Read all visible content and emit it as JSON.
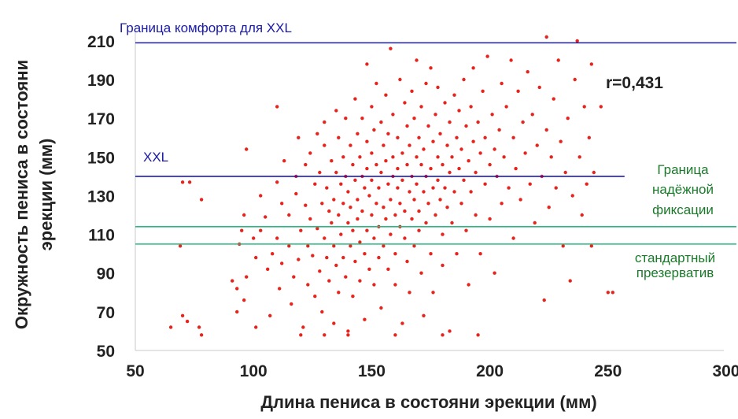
{
  "chart_data": {
    "type": "scatter",
    "xlabel": "Длина пениса в состояни эрекции (мм)",
    "ylabel": "Окружность пениса в состояни эрекции (мм)",
    "xlim": [
      50,
      305
    ],
    "ylim": [
      50,
      212
    ],
    "xticks": [
      50,
      100,
      150,
      200,
      250,
      300
    ],
    "yticks": [
      50,
      70,
      90,
      110,
      130,
      150,
      170,
      190,
      210
    ],
    "grid": false,
    "legend": "none",
    "annotations": {
      "comfort_xxl": "Граница комфорта для XXL",
      "xxl": "XXL",
      "reliable_1": "Граница",
      "reliable_2": "надёжной",
      "reliable_3": "фиксации",
      "standard_1": "стандартный",
      "standard_2": "презерватив",
      "r": "r=0,431"
    },
    "reference_lines": [
      {
        "id": "comfort-xxl",
        "y": 209,
        "x_from": 50,
        "x_to": 305,
        "color": "#1a1ab4"
      },
      {
        "id": "xxl",
        "y": 140,
        "x_from": 50,
        "x_to": 257,
        "color": "#1a1ab4"
      },
      {
        "id": "reliable-fixation",
        "y": 114,
        "x_from": 50,
        "x_to": 305,
        "color": "#2ab880"
      },
      {
        "id": "standard-condom",
        "y": 105,
        "x_from": 50,
        "x_to": 305,
        "color": "#2ab880"
      }
    ],
    "point_color": "#e8231c",
    "series": [
      {
        "points": [
          [
            65,
            62
          ],
          [
            70,
            68
          ],
          [
            72,
            65
          ],
          [
            77,
            62
          ],
          [
            78,
            58
          ],
          [
            70,
            137
          ],
          [
            73,
            137
          ],
          [
            78,
            128
          ],
          [
            69,
            104
          ],
          [
            91,
            86
          ],
          [
            93,
            82
          ],
          [
            93,
            70
          ],
          [
            96,
            76
          ],
          [
            97,
            88
          ],
          [
            95,
            112
          ],
          [
            96,
            120
          ],
          [
            94,
            105
          ],
          [
            97,
            154
          ],
          [
            100,
            108
          ],
          [
            101,
            98
          ],
          [
            101,
            62
          ],
          [
            103,
            112
          ],
          [
            103,
            130
          ],
          [
            105,
            119
          ],
          [
            106,
            92
          ],
          [
            107,
            68
          ],
          [
            108,
            100
          ],
          [
            110,
            176
          ],
          [
            110,
            137
          ],
          [
            110,
            108
          ],
          [
            111,
            82
          ],
          [
            112,
            126
          ],
          [
            112,
            95
          ],
          [
            113,
            148
          ],
          [
            115,
            120
          ],
          [
            115,
            104
          ],
          [
            116,
            74
          ],
          [
            117,
            88
          ],
          [
            118,
            140
          ],
          [
            118,
            131
          ],
          [
            119,
            160
          ],
          [
            119,
            97
          ],
          [
            120,
            112
          ],
          [
            121,
            62
          ],
          [
            122,
            146
          ],
          [
            122,
            125
          ],
          [
            123,
            104
          ],
          [
            123,
            84
          ],
          [
            124,
            152
          ],
          [
            124,
            118
          ],
          [
            125,
            99
          ],
          [
            126,
            136
          ],
          [
            126,
            78
          ],
          [
            127,
            162
          ],
          [
            127,
            113
          ],
          [
            128,
            142
          ],
          [
            128,
            91
          ],
          [
            129,
            126
          ],
          [
            129,
            70
          ],
          [
            130,
            168
          ],
          [
            130,
            156
          ],
          [
            130,
            108
          ],
          [
            131,
            134
          ],
          [
            131,
            98
          ],
          [
            132,
            122
          ],
          [
            132,
            86
          ],
          [
            133,
            148
          ],
          [
            133,
            116
          ],
          [
            134,
            128
          ],
          [
            134,
            104
          ],
          [
            134,
            64
          ],
          [
            135,
            174
          ],
          [
            135,
            142
          ],
          [
            135,
            94
          ],
          [
            136,
            160
          ],
          [
            136,
            120
          ],
          [
            136,
            80
          ],
          [
            137,
            136
          ],
          [
            137,
            110
          ],
          [
            138,
            150
          ],
          [
            138,
            126
          ],
          [
            138,
            98
          ],
          [
            139,
            170
          ],
          [
            139,
            140
          ],
          [
            139,
            88
          ],
          [
            140,
            116
          ],
          [
            140,
            132
          ],
          [
            140,
            60
          ],
          [
            141,
            156
          ],
          [
            141,
            124
          ],
          [
            141,
            104
          ],
          [
            142,
            146
          ],
          [
            142,
            112
          ],
          [
            142,
            78
          ],
          [
            143,
            180
          ],
          [
            143,
            138
          ],
          [
            143,
            96
          ],
          [
            144,
            128
          ],
          [
            144,
            162
          ],
          [
            144,
            118
          ],
          [
            145,
            150
          ],
          [
            145,
            106
          ],
          [
            145,
            86
          ],
          [
            146,
            140
          ],
          [
            146,
            170
          ],
          [
            146,
            122
          ],
          [
            147,
            134
          ],
          [
            147,
            100
          ],
          [
            147,
            66
          ],
          [
            148,
            198
          ],
          [
            148,
            158
          ],
          [
            148,
            144
          ],
          [
            148,
            112
          ],
          [
            149,
            130
          ],
          [
            149,
            92
          ],
          [
            150,
            176
          ],
          [
            150,
            152
          ],
          [
            150,
            120
          ],
          [
            150,
            138
          ],
          [
            151,
            108
          ],
          [
            151,
            164
          ],
          [
            151,
            84
          ],
          [
            152,
            146
          ],
          [
            152,
            126
          ],
          [
            152,
            188
          ],
          [
            153,
            134
          ],
          [
            153,
            114
          ],
          [
            153,
            98
          ],
          [
            154,
            168
          ],
          [
            154,
            142
          ],
          [
            154,
            72
          ],
          [
            155,
            156
          ],
          [
            155,
            124
          ],
          [
            155,
            104
          ],
          [
            156,
            182
          ],
          [
            156,
            148
          ],
          [
            156,
            118
          ],
          [
            157,
            136
          ],
          [
            157,
            92
          ],
          [
            157,
            162
          ],
          [
            158,
            128
          ],
          [
            158,
            110
          ],
          [
            158,
            206
          ],
          [
            159,
            172
          ],
          [
            159,
            140
          ],
          [
            159,
            150
          ],
          [
            160,
            120
          ],
          [
            160,
            100
          ],
          [
            160,
            84
          ],
          [
            161,
            160
          ],
          [
            161,
            134
          ],
          [
            161,
            144
          ],
          [
            162,
            190
          ],
          [
            162,
            126
          ],
          [
            162,
            114
          ],
          [
            163,
            152
          ],
          [
            163,
            138
          ],
          [
            163,
            64
          ],
          [
            164,
            178
          ],
          [
            164,
            122
          ],
          [
            164,
            108
          ],
          [
            165,
            166
          ],
          [
            165,
            146
          ],
          [
            165,
            96
          ],
          [
            166,
            132
          ],
          [
            166,
            156
          ],
          [
            166,
            80
          ],
          [
            167,
            184
          ],
          [
            167,
            140
          ],
          [
            167,
            118
          ],
          [
            168,
            170
          ],
          [
            168,
            128
          ],
          [
            168,
            104
          ],
          [
            169,
            150
          ],
          [
            169,
            136
          ],
          [
            169,
            200
          ],
          [
            170,
            160
          ],
          [
            170,
            122
          ],
          [
            170,
            112
          ],
          [
            171,
            146
          ],
          [
            171,
            176
          ],
          [
            171,
            90
          ],
          [
            172,
            132
          ],
          [
            172,
            154
          ],
          [
            172,
            68
          ],
          [
            173,
            188
          ],
          [
            173,
            140
          ],
          [
            173,
            116
          ],
          [
            174,
            166
          ],
          [
            174,
            126
          ],
          [
            175,
            144
          ],
          [
            175,
            196
          ],
          [
            175,
            100
          ],
          [
            176,
            158
          ],
          [
            176,
            134
          ],
          [
            176,
            80
          ],
          [
            177,
            172
          ],
          [
            177,
            120
          ],
          [
            178,
            150
          ],
          [
            178,
            138
          ],
          [
            178,
            186
          ],
          [
            179,
            128
          ],
          [
            179,
            162
          ],
          [
            180,
            146
          ],
          [
            180,
            110
          ],
          [
            180,
            94
          ],
          [
            181,
            178
          ],
          [
            181,
            134
          ],
          [
            182,
            156
          ],
          [
            182,
            124
          ],
          [
            183,
            168
          ],
          [
            183,
            142
          ],
          [
            183,
            60
          ],
          [
            184,
            150
          ],
          [
            184,
            116
          ],
          [
            185,
            182
          ],
          [
            185,
            132
          ],
          [
            186,
            160
          ],
          [
            186,
            100
          ],
          [
            187,
            144
          ],
          [
            187,
            174
          ],
          [
            188,
            126
          ],
          [
            188,
            154
          ],
          [
            189,
            190
          ],
          [
            189,
            138
          ],
          [
            190,
            166
          ],
          [
            190,
            112
          ],
          [
            191,
            148
          ],
          [
            191,
            84
          ],
          [
            192,
            176
          ],
          [
            192,
            132
          ],
          [
            193,
            158
          ],
          [
            193,
            196
          ],
          [
            194,
            142
          ],
          [
            194,
            120
          ],
          [
            195,
            168
          ],
          [
            196,
            152
          ],
          [
            196,
            100
          ],
          [
            197,
            184
          ],
          [
            198,
            136
          ],
          [
            198,
            160
          ],
          [
            199,
            202
          ],
          [
            200,
            146
          ],
          [
            200,
            118
          ],
          [
            201,
            172
          ],
          [
            202,
            154
          ],
          [
            202,
            90
          ],
          [
            203,
            140
          ],
          [
            204,
            164
          ],
          [
            205,
            188
          ],
          [
            205,
            126
          ],
          [
            206,
            150
          ],
          [
            207,
            176
          ],
          [
            208,
            134
          ],
          [
            209,
            200
          ],
          [
            210,
            160
          ],
          [
            210,
            108
          ],
          [
            211,
            144
          ],
          [
            212,
            184
          ],
          [
            213,
            128
          ],
          [
            214,
            168
          ],
          [
            215,
            152
          ],
          [
            216,
            194
          ],
          [
            217,
            136
          ],
          [
            218,
            172
          ],
          [
            219,
            116
          ],
          [
            220,
            156
          ],
          [
            221,
            186
          ],
          [
            222,
            140
          ],
          [
            223,
            76
          ],
          [
            224,
            212
          ],
          [
            224,
            164
          ],
          [
            225,
            124
          ],
          [
            226,
            150
          ],
          [
            227,
            180
          ],
          [
            228,
            134
          ],
          [
            229,
            200
          ],
          [
            230,
            158
          ],
          [
            231,
            104
          ],
          [
            232,
            142
          ],
          [
            233,
            170
          ],
          [
            234,
            86
          ],
          [
            235,
            130
          ],
          [
            236,
            190
          ],
          [
            237,
            210
          ],
          [
            238,
            150
          ],
          [
            239,
            120
          ],
          [
            240,
            176
          ],
          [
            241,
            136
          ],
          [
            242,
            160
          ],
          [
            243,
            104
          ],
          [
            243,
            198
          ],
          [
            244,
            142
          ],
          [
            247,
            176
          ],
          [
            250,
            80
          ],
          [
            252,
            80
          ],
          [
            180,
            58
          ],
          [
            160,
            58
          ],
          [
            140,
            58
          ],
          [
            120,
            58
          ],
          [
            130,
            58
          ],
          [
            195,
            58
          ]
        ]
      }
    ]
  }
}
